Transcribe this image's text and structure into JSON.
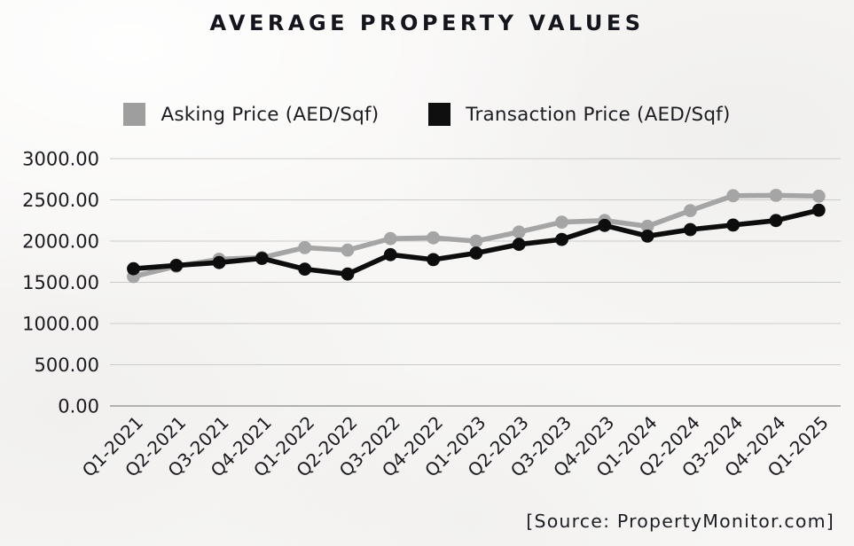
{
  "page": {
    "title": "AVERAGE PROPERTY VALUES",
    "source": "[Source: PropertyMonitor.com]"
  },
  "legend": [
    {
      "label": "Asking Price (AED/Sqf)",
      "color": "#9e9e9e"
    },
    {
      "label": "Transaction Price (AED/Sqf)",
      "color": "#0f0f0f"
    }
  ],
  "chart_data": {
    "type": "line",
    "title": "AVERAGE PROPERTY VALUES",
    "categories": [
      "Q1-2021",
      "Q2-2021",
      "Q3-2021",
      "Q4-2021",
      "Q1-2022",
      "Q2-2022",
      "Q3-2022",
      "Q4-2022",
      "Q1-2023",
      "Q2-2023",
      "Q3-2023",
      "Q4-2023",
      "Q1-2024",
      "Q2-2024",
      "Q3-2024",
      "Q4-2024",
      "Q1-2025"
    ],
    "series": [
      {
        "name": "Asking Price (AED/Sqf)",
        "color": "#a5a5a5",
        "values": [
          1570,
          1695,
          1780,
          1800,
          1920,
          1890,
          2030,
          2040,
          2000,
          2110,
          2230,
          2250,
          2180,
          2370,
          2550,
          2555,
          2545
        ]
      },
      {
        "name": "Transaction Price (AED/Sqf)",
        "color": "#0d0d0d",
        "values": [
          1665,
          1705,
          1740,
          1790,
          1660,
          1600,
          1835,
          1775,
          1855,
          1960,
          2020,
          2190,
          2060,
          2140,
          2195,
          2250,
          2375
        ]
      }
    ],
    "xlabel": "",
    "ylabel": "",
    "ylim": [
      0,
      3000
    ],
    "y_ticks": [
      "3000.00",
      "2500.00",
      "2000.00",
      "1500.00",
      "1000.00",
      "500.00",
      "0.00"
    ],
    "y_tick_values": [
      3000,
      2500,
      2000,
      1500,
      1000,
      500,
      0
    ],
    "grid": true,
    "legend_position": "top",
    "x_label_rotation": -45
  },
  "style": {
    "gridline_color": "#cbcbcb",
    "zero_line_color": "#9c9c9c",
    "tick_label_color": "#1b1b20",
    "background": "#f7f6f4"
  }
}
